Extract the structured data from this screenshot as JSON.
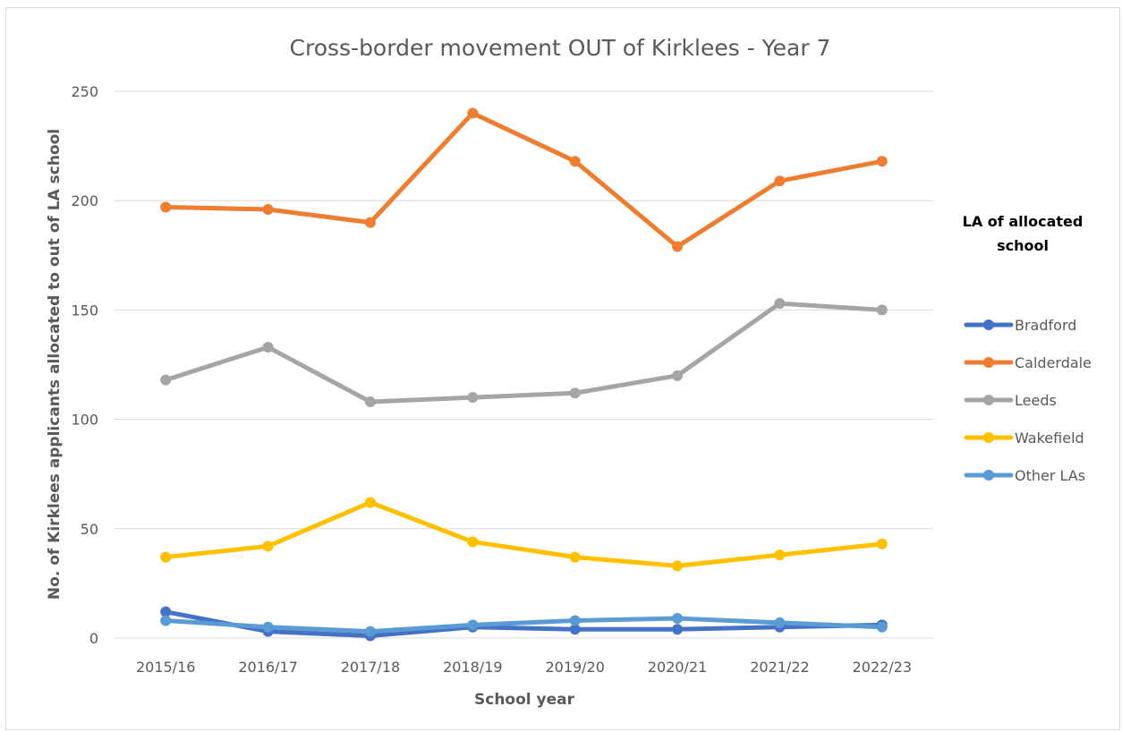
{
  "chart_data": {
    "type": "line",
    "title": "Cross-border movement OUT of Kirklees - Year 7",
    "xlabel": "School year",
    "ylabel": "No. of Kirklees applicants allocated to out of LA school",
    "categories": [
      "2015/16",
      "2016/17",
      "2017/18",
      "2018/19",
      "2019/20",
      "2020/21",
      "2021/22",
      "2022/23"
    ],
    "ylim": [
      0,
      250
    ],
    "yticks": [
      0,
      50,
      100,
      150,
      200,
      250
    ],
    "grid": "horizontal",
    "legend": {
      "title": "LA of allocated school",
      "title_lines": [
        "LA of allocated",
        "school"
      ],
      "position": "right"
    },
    "series": [
      {
        "name": "Bradford",
        "color": "#4472C4",
        "values": [
          12,
          3,
          1,
          5,
          4,
          4,
          5,
          6
        ]
      },
      {
        "name": "Calderdale",
        "color": "#ED7D31",
        "values": [
          197,
          196,
          190,
          240,
          218,
          179,
          209,
          218
        ]
      },
      {
        "name": "Leeds",
        "color": "#A5A5A5",
        "values": [
          118,
          133,
          108,
          110,
          112,
          120,
          153,
          150
        ]
      },
      {
        "name": "Wakefield",
        "color": "#FFC000",
        "values": [
          37,
          42,
          62,
          44,
          37,
          33,
          38,
          43
        ]
      },
      {
        "name": "Other LAs",
        "color": "#5B9BD5",
        "values": [
          8,
          5,
          3,
          6,
          8,
          9,
          7,
          5
        ]
      }
    ]
  }
}
